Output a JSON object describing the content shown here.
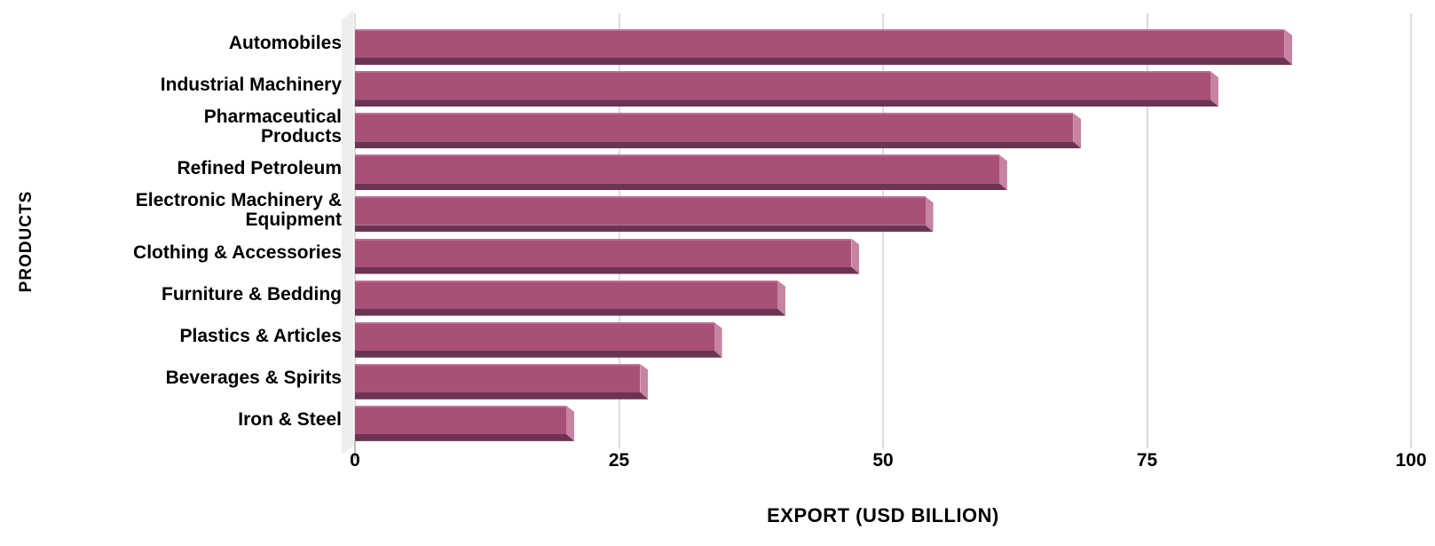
{
  "chart_data": {
    "type": "bar",
    "orientation": "horizontal",
    "title": "",
    "categories": [
      "Automobiles",
      "Industrial Machinery",
      "Pharmaceutical\nProducts",
      "Refined Petroleum",
      "Electronic Machinery &\nEquipment",
      "Clothing & Accessories",
      "Furniture & Bedding",
      "Plastics & Articles",
      "Beverages & Spirits",
      "Iron & Steel"
    ],
    "values": [
      88,
      81,
      68,
      61,
      54,
      47,
      40,
      34,
      27,
      20
    ],
    "xlabel": "EXPORT (USD BILLION)",
    "ylabel": "PRODUCTS",
    "xlim": [
      0,
      100
    ],
    "xticks": [
      "0",
      "25",
      "50",
      "75",
      "100"
    ],
    "grid": true,
    "legend_position": "none",
    "style_3d_bevel": true,
    "colors": {
      "bar_face": "#A85078",
      "bar_top_edge": "#BD6F93",
      "bar_side": "#C783A2",
      "bar_bottom": "#6B3452",
      "axis_wall": "#EDEDED",
      "gridline": "#DCDCDC",
      "zero_tick": "#BBBBBB",
      "text": "#000000",
      "background": "#FFFFFF"
    }
  }
}
